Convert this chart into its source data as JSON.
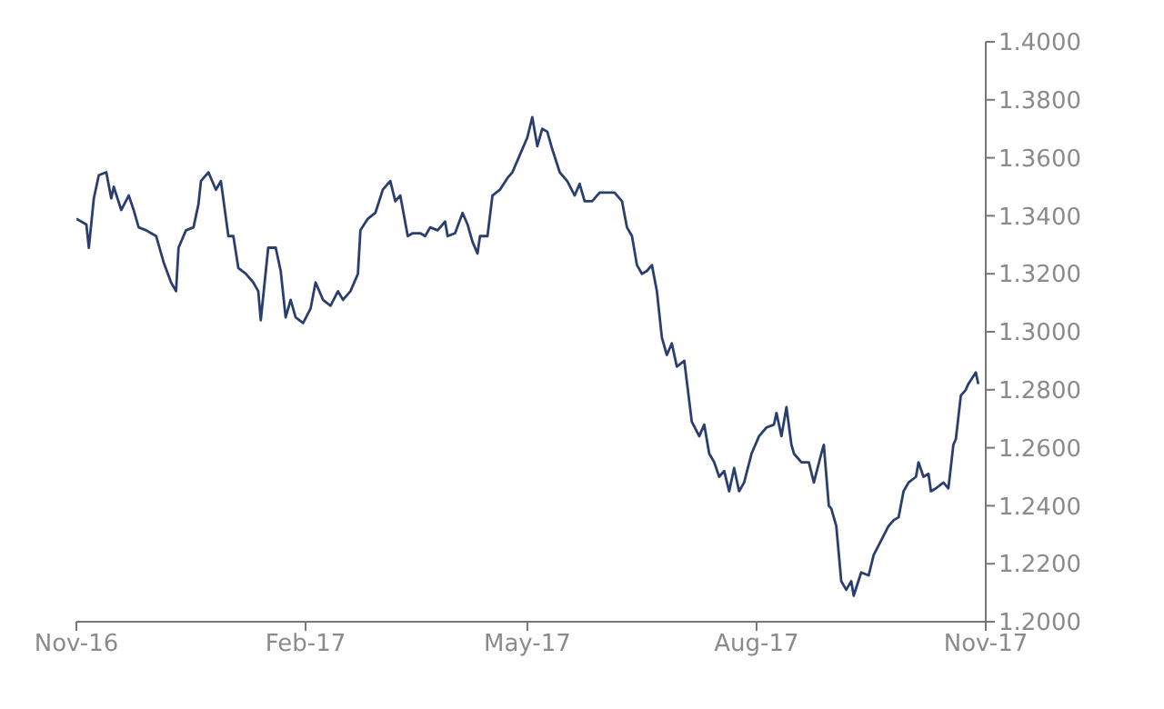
{
  "chart_data": {
    "type": "line",
    "x": [
      "2016-11-01",
      "2016-11-05",
      "2016-11-06",
      "2016-11-08",
      "2016-11-10",
      "2016-11-13",
      "2016-11-15",
      "2016-11-16",
      "2016-11-19",
      "2016-11-22",
      "2016-11-24",
      "2016-11-26",
      "2016-11-29",
      "2016-12-03",
      "2016-12-06",
      "2016-12-09",
      "2016-12-11",
      "2016-12-12",
      "2016-12-15",
      "2016-12-18",
      "2016-12-20",
      "2016-12-21",
      "2016-12-24",
      "2016-12-27",
      "2016-12-29",
      "2017-01-01",
      "2017-01-03",
      "2017-01-05",
      "2017-01-08",
      "2017-01-11",
      "2017-01-13",
      "2017-01-14",
      "2017-01-17",
      "2017-01-20",
      "2017-01-22",
      "2017-01-24",
      "2017-01-26",
      "2017-01-28",
      "2017-01-31",
      "2017-02-03",
      "2017-02-05",
      "2017-02-08",
      "2017-02-11",
      "2017-02-14",
      "2017-02-16",
      "2017-02-19",
      "2017-02-22",
      "2017-02-23",
      "2017-02-26",
      "2017-03-01",
      "2017-03-04",
      "2017-03-07",
      "2017-03-09",
      "2017-03-11",
      "2017-03-14",
      "2017-03-16",
      "2017-03-19",
      "2017-03-21",
      "2017-03-23",
      "2017-03-26",
      "2017-03-29",
      "2017-03-30",
      "2017-04-02",
      "2017-04-05",
      "2017-04-07",
      "2017-04-09",
      "2017-04-11",
      "2017-04-12",
      "2017-04-15",
      "2017-04-17",
      "2017-04-20",
      "2017-04-23",
      "2017-04-25",
      "2017-04-28",
      "2017-05-01",
      "2017-05-03",
      "2017-05-05",
      "2017-05-07",
      "2017-05-09",
      "2017-05-11",
      "2017-05-14",
      "2017-05-17",
      "2017-05-20",
      "2017-05-22",
      "2017-05-24",
      "2017-05-27",
      "2017-05-30",
      "2017-06-02",
      "2017-06-05",
      "2017-06-08",
      "2017-06-10",
      "2017-06-12",
      "2017-06-14",
      "2017-06-16",
      "2017-06-18",
      "2017-06-20",
      "2017-06-22",
      "2017-06-24",
      "2017-06-26",
      "2017-06-28",
      "2017-06-30",
      "2017-07-03",
      "2017-07-04",
      "2017-07-06",
      "2017-07-09",
      "2017-07-11",
      "2017-07-13",
      "2017-07-15",
      "2017-07-17",
      "2017-07-19",
      "2017-07-21",
      "2017-07-23",
      "2017-07-25",
      "2017-07-27",
      "2017-07-30",
      "2017-08-02",
      "2017-08-05",
      "2017-08-08",
      "2017-08-09",
      "2017-08-11",
      "2017-08-13",
      "2017-08-15",
      "2017-08-16",
      "2017-08-19",
      "2017-08-22",
      "2017-08-24",
      "2017-08-27",
      "2017-08-28",
      "2017-08-30",
      "2017-08-31",
      "2017-09-02",
      "2017-09-04",
      "2017-09-06",
      "2017-09-08",
      "2017-09-09",
      "2017-09-12",
      "2017-09-15",
      "2017-09-17",
      "2017-09-20",
      "2017-09-23",
      "2017-09-25",
      "2017-09-27",
      "2017-09-29",
      "2017-10-01",
      "2017-10-04",
      "2017-10-05",
      "2017-10-07",
      "2017-10-09",
      "2017-10-10",
      "2017-10-12",
      "2017-10-15",
      "2017-10-17",
      "2017-10-19",
      "2017-10-20",
      "2017-10-22",
      "2017-10-24",
      "2017-10-25",
      "2017-10-28",
      "2017-10-29"
    ],
    "series": [
      {
        "color": "#2b3f6e",
        "values": [
          1.339,
          1.337,
          1.329,
          1.346,
          1.354,
          1.355,
          1.346,
          1.35,
          1.342,
          1.347,
          1.342,
          1.336,
          1.335,
          1.333,
          1.324,
          1.317,
          1.314,
          1.329,
          1.335,
          1.336,
          1.344,
          1.352,
          1.355,
          1.349,
          1.352,
          1.333,
          1.333,
          1.322,
          1.32,
          1.317,
          1.314,
          1.304,
          1.329,
          1.329,
          1.321,
          1.305,
          1.311,
          1.305,
          1.303,
          1.308,
          1.317,
          1.311,
          1.309,
          1.314,
          1.311,
          1.314,
          1.32,
          1.335,
          1.339,
          1.341,
          1.349,
          1.352,
          1.345,
          1.347,
          1.333,
          1.334,
          1.334,
          1.333,
          1.336,
          1.335,
          1.338,
          1.333,
          1.334,
          1.341,
          1.337,
          1.331,
          1.327,
          1.333,
          1.333,
          1.347,
          1.349,
          1.353,
          1.355,
          1.361,
          1.367,
          1.374,
          1.364,
          1.37,
          1.369,
          1.363,
          1.355,
          1.352,
          1.347,
          1.351,
          1.345,
          1.345,
          1.348,
          1.348,
          1.348,
          1.345,
          1.336,
          1.333,
          1.323,
          1.32,
          1.321,
          1.323,
          1.314,
          1.298,
          1.292,
          1.296,
          1.288,
          1.29,
          1.283,
          1.269,
          1.264,
          1.268,
          1.258,
          1.255,
          1.25,
          1.252,
          1.245,
          1.253,
          1.245,
          1.248,
          1.258,
          1.264,
          1.267,
          1.268,
          1.272,
          1.264,
          1.274,
          1.261,
          1.258,
          1.255,
          1.255,
          1.248,
          1.258,
          1.261,
          1.24,
          1.239,
          1.233,
          1.214,
          1.211,
          1.214,
          1.209,
          1.217,
          1.216,
          1.223,
          1.228,
          1.233,
          1.235,
          1.236,
          1.245,
          1.248,
          1.25,
          1.255,
          1.25,
          1.251,
          1.245,
          1.246,
          1.248,
          1.246,
          1.261,
          1.263,
          1.278,
          1.28,
          1.282,
          1.286,
          1.282
        ]
      }
    ],
    "xlim": [
      "2016-11-01",
      "2017-11-01"
    ],
    "xticks": [
      {
        "value": "2016-11-01",
        "label": "Nov-16"
      },
      {
        "value": "2017-02-01",
        "label": "Feb-17"
      },
      {
        "value": "2017-05-01",
        "label": "May-17"
      },
      {
        "value": "2017-08-01",
        "label": "Aug-17"
      },
      {
        "value": "2017-11-01",
        "label": "Nov-17"
      }
    ],
    "ylim": [
      1.2,
      1.4
    ],
    "yticks": [
      {
        "value": 1.2,
        "label": "1.2000"
      },
      {
        "value": 1.22,
        "label": "1.2200"
      },
      {
        "value": 1.24,
        "label": "1.2400"
      },
      {
        "value": 1.26,
        "label": "1.2600"
      },
      {
        "value": 1.28,
        "label": "1.2800"
      },
      {
        "value": 1.3,
        "label": "1.3000"
      },
      {
        "value": 1.32,
        "label": "1.3200"
      },
      {
        "value": 1.34,
        "label": "1.3400"
      },
      {
        "value": 1.36,
        "label": "1.3600"
      },
      {
        "value": 1.38,
        "label": "1.3800"
      },
      {
        "value": 1.4,
        "label": "1.4000"
      }
    ],
    "grid": false,
    "legend": false,
    "marker": "none",
    "line_style": "solid"
  }
}
